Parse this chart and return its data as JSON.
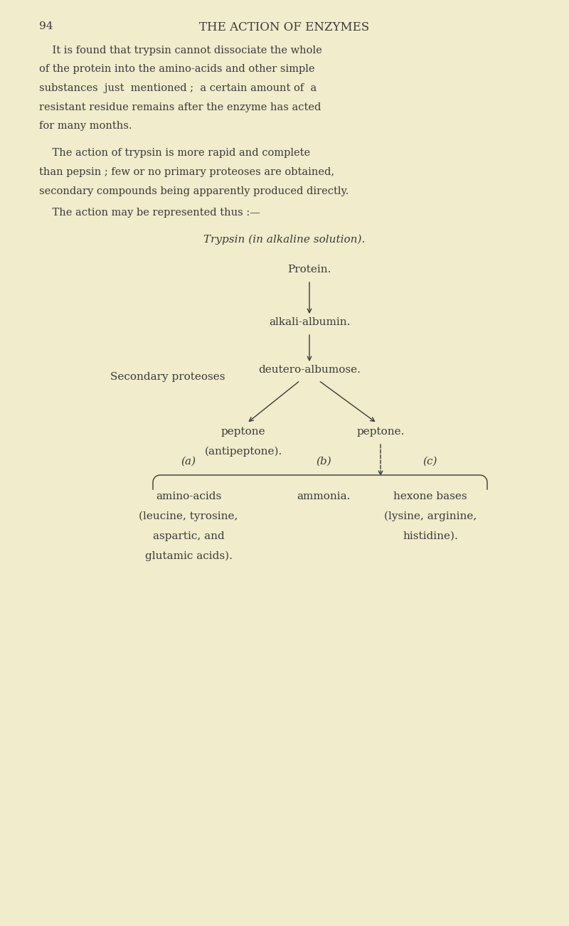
{
  "bg_color": "#f0eccc",
  "text_color": "#3a3a3a",
  "page_number": "94",
  "page_header": "THE ACTION OF ENZYMES",
  "italic_title": "Trypsin (in alkaline solution).",
  "node_protein": "Protein.",
  "node_alkali": "alkali-albumin.",
  "node_secondary_proteoses": "Secondary proteoses",
  "node_deutero": "deutero-albumose.",
  "node_peptone_left_1": "peptone",
  "node_peptone_left_2": "(antipeptone).",
  "node_peptone_right": "peptone.",
  "label_a": "(a)",
  "label_b": "(b)",
  "label_c": "(c)",
  "node_a_text1": "amino-acids",
  "node_a_text2": "(leucine, tyrosine,",
  "node_a_text3": "aspartic, and",
  "node_a_text4": "glutamic acids).",
  "node_b_text": "ammonia.",
  "node_c_text1": "hexone bases",
  "node_c_text2": "(lysine, arginine,",
  "node_c_text3": "histidine).",
  "para1_lines": [
    "    It is found that trypsin cannot dissociate the whole",
    "of the protein into the amino-acids and other simple",
    "substances  just  mentioned ;  a certain amount of  a",
    "resistant residue remains after the enzyme has acted",
    "for many months."
  ],
  "para2_lines": [
    "    The action of trypsin is more rapid and complete",
    "than pepsin ; few or no primary proteoses are obtained,",
    "secondary compounds being apparently produced directly."
  ],
  "para3": "    The action may be represented thus :—"
}
